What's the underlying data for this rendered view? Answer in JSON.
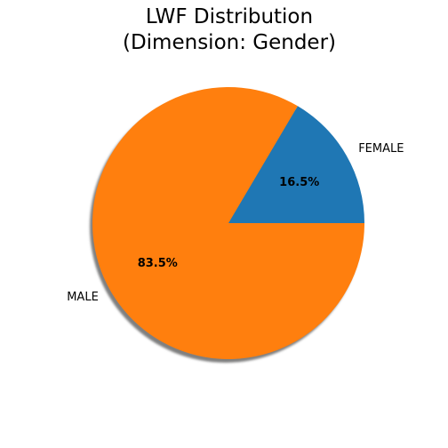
{
  "chart_data": {
    "type": "pie",
    "title_lines": [
      "LWF Distribution",
      "(Dimension: Gender)"
    ],
    "categories": [
      "FEMALE",
      "MALE"
    ],
    "values": [
      16.5,
      83.5
    ],
    "percent_labels": [
      "16.5%",
      "83.5%"
    ],
    "colors": [
      "#1f77b4",
      "#ff7f0e"
    ],
    "start_angle_deg": 0,
    "direction": "counterclockwise",
    "shadow": true
  }
}
